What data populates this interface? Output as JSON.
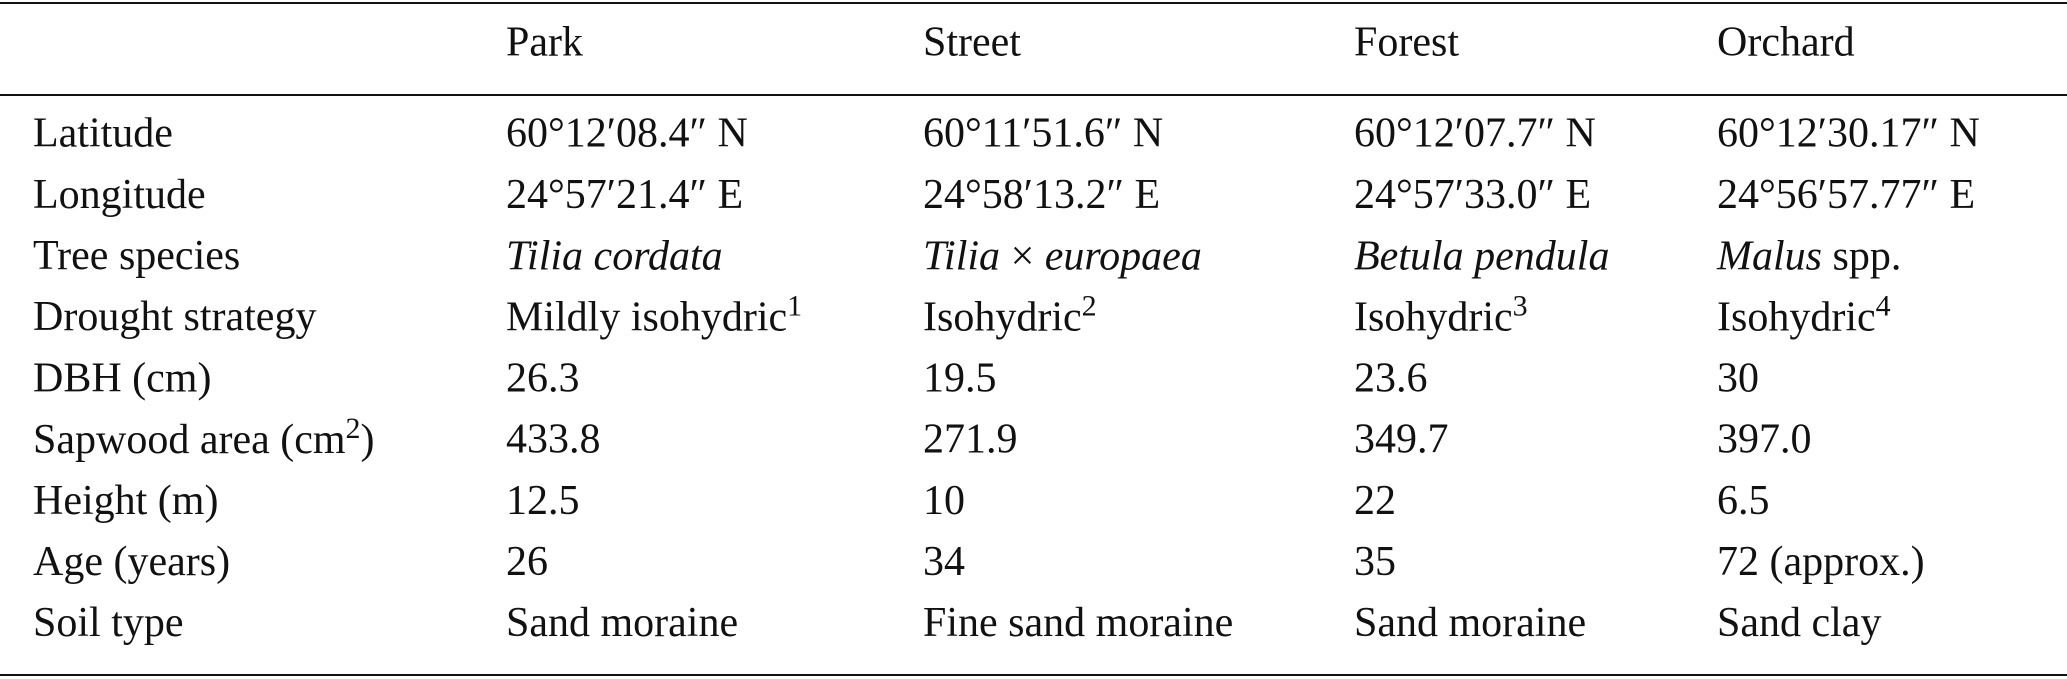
{
  "table": {
    "columns": [
      "Park",
      "Street",
      "Forest",
      "Orchard"
    ],
    "rows": [
      {
        "label": "Latitude",
        "cells": [
          "60°12′08.4″ N",
          "60°11′51.6″ N",
          "60°12′07.7″ N",
          "60°12′30.17″ N"
        ]
      },
      {
        "label": "Longitude",
        "cells": [
          "24°57′21.4″ E",
          "24°58′13.2″ E",
          "24°57′33.0″ E",
          "24°56′57.77″ E"
        ]
      },
      {
        "label": "Tree species",
        "cells": [
          [
            {
              "text": "Tilia cordata",
              "italic": true
            }
          ],
          [
            {
              "text": "Tilia",
              "italic": true
            },
            {
              "text": " × "
            },
            {
              "text": "europaea",
              "italic": true
            }
          ],
          [
            {
              "text": "Betula pendula",
              "italic": true
            }
          ],
          [
            {
              "text": "Malus",
              "italic": true
            },
            {
              "text": " spp."
            }
          ]
        ]
      },
      {
        "label": "Drought strategy",
        "cells": [
          [
            {
              "text": "Mildly isohydric"
            },
            {
              "text": "1",
              "sup": true
            }
          ],
          [
            {
              "text": "Isohydric"
            },
            {
              "text": "2",
              "sup": true
            }
          ],
          [
            {
              "text": "Isohydric"
            },
            {
              "text": "3",
              "sup": true
            }
          ],
          [
            {
              "text": "Isohydric"
            },
            {
              "text": "4",
              "sup": true
            }
          ]
        ]
      },
      {
        "label": "DBH (cm)",
        "cells": [
          "26.3",
          "19.5",
          "23.6",
          "30"
        ]
      },
      {
        "label": [
          {
            "text": "Sapwood area (cm"
          },
          {
            "text": "2",
            "sup": true
          },
          {
            "text": ")"
          }
        ],
        "cells": [
          "433.8",
          "271.9",
          "349.7",
          "397.0"
        ]
      },
      {
        "label": "Height (m)",
        "cells": [
          "12.5",
          "10",
          "22",
          "6.5"
        ]
      },
      {
        "label": "Age (years)",
        "cells": [
          "26",
          "34",
          "35",
          "72 (approx.)"
        ]
      },
      {
        "label": "Soil type",
        "cells": [
          "Sand moraine",
          "Fine sand moraine",
          "Sand moraine",
          "Sand clay"
        ]
      }
    ]
  }
}
